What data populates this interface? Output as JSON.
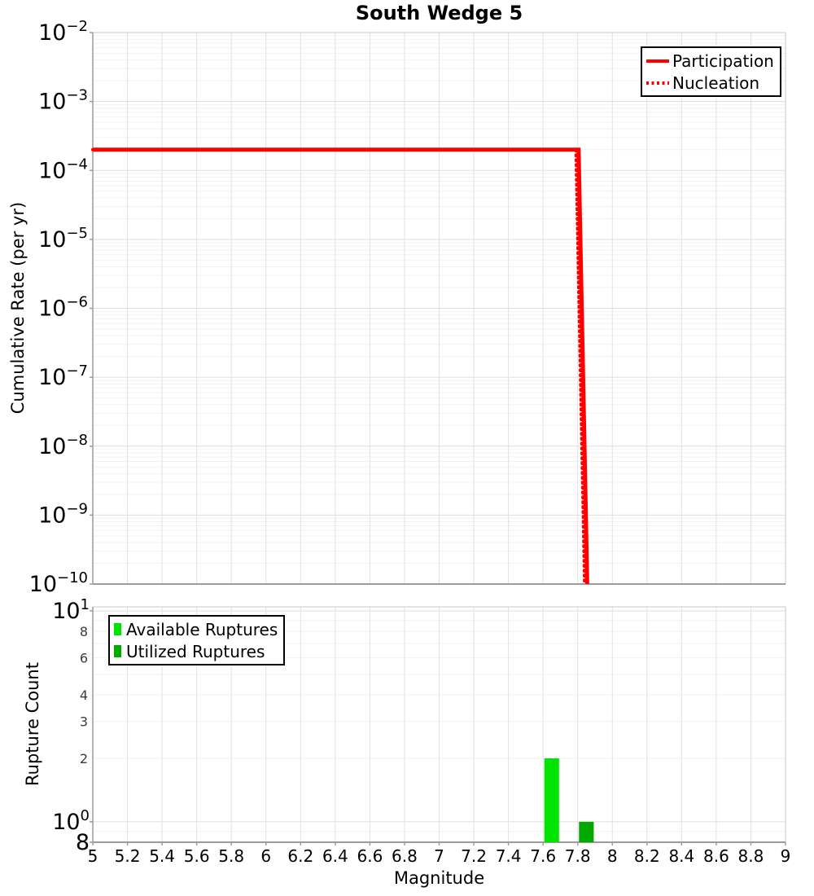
{
  "title": "South Wedge 5",
  "chart_data": [
    {
      "type": "line",
      "title": "South Wedge 5",
      "ylabel": "Cumulative Rate (per yr)",
      "x_axis": {
        "min": 5,
        "max": 9,
        "tick_step": 0.2
      },
      "y_axis": {
        "scale": "log",
        "min_exp": -10,
        "max_exp": -2,
        "tick_exponents": [
          -2,
          -3,
          -4,
          -5,
          -6,
          -7,
          -8,
          -9,
          -10
        ]
      },
      "legend_position": "top-right",
      "series": [
        {
          "name": "Participation",
          "color": "#ff0000",
          "line_style": "solid",
          "line_width": 5,
          "points": [
            [
              5.0,
              0.0002
            ],
            [
              7.805,
              0.0002
            ],
            [
              7.855,
              1e-10
            ]
          ]
        },
        {
          "name": "Nucleation",
          "color": "#ff0000",
          "line_style": "dotted",
          "line_width": 4,
          "points": [
            [
              5.0,
              0.0002
            ],
            [
              7.79,
              0.0002
            ],
            [
              7.84,
              1e-10
            ]
          ]
        }
      ]
    },
    {
      "type": "bar",
      "ylabel": "Rupture Count",
      "xlabel": "Magnitude",
      "x_axis": {
        "min": 5,
        "max": 9,
        "tick_step": 0.2,
        "tick_labels": [
          "5",
          "5.2",
          "5.4",
          "5.6",
          "5.8",
          "6",
          "6.2",
          "6.4",
          "6.6",
          "6.8",
          "7",
          "7.2",
          "7.4",
          "7.6",
          "7.8",
          "8",
          "8.2",
          "8.4",
          "8.6",
          "8.8",
          "9"
        ]
      },
      "y_axis": {
        "scale": "log",
        "min": 0.8,
        "max": 10.45,
        "major_ticks": [
          {
            "text": "10",
            "exp": "1",
            "value": 10
          },
          {
            "text": "10",
            "exp": "0",
            "value": 1
          },
          {
            "text": "8",
            "exp": "",
            "value": 0.8
          }
        ],
        "minor_tick_labels": [
          {
            "text": "8",
            "value": 8
          },
          {
            "text": "6",
            "value": 6
          },
          {
            "text": "4",
            "value": 4
          },
          {
            "text": "3",
            "value": 3
          },
          {
            "text": "2",
            "value": 2
          }
        ]
      },
      "bar_width": 0.085,
      "legend_position": "top-left",
      "series": [
        {
          "name": "Available Ruptures",
          "color": "#00e400",
          "bars": [
            {
              "x": 7.65,
              "count": 2
            }
          ]
        },
        {
          "name": "Utilized Ruptures",
          "color": "#00a800",
          "bars": [
            {
              "x": 7.85,
              "count": 1
            }
          ]
        }
      ]
    }
  ],
  "colors": {
    "grid_vertical": "#e2e2e2",
    "grid_major": "#dedede",
    "grid_minor": "#f2f2f2",
    "plot_border": "#c9c9c9",
    "axis_line": "#9c9c9c",
    "background": "#ffffff",
    "text": "#000000",
    "minor_label": "#3a3a3a"
  }
}
